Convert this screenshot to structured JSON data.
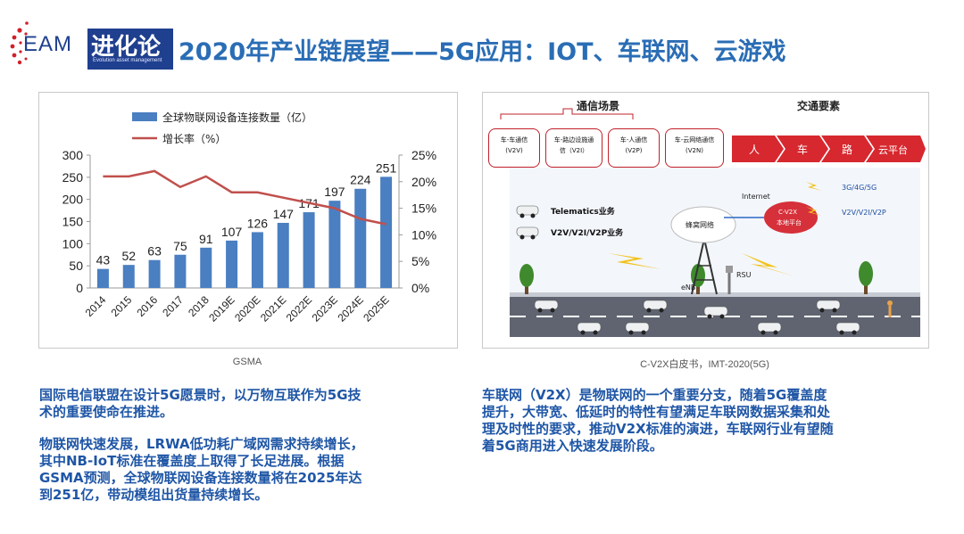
{
  "logo": {
    "letters": "EAM",
    "cn": "进化论",
    "sub": "Evolution asset management"
  },
  "title": "2020年产业链展望——5G应用：IOT、车联网、云游戏",
  "left_caption": "GSMA",
  "right_caption": "C-V2X白皮书，IMT-2020(5G)",
  "chart_data": {
    "type": "bar",
    "categories": [
      "2014",
      "2015",
      "2016",
      "2017",
      "2018",
      "2019E",
      "2020E",
      "2021E",
      "2022E",
      "2023E",
      "2024E",
      "2025E"
    ],
    "series": [
      {
        "name": "全球物联网设备连接数量（亿）",
        "type": "bar",
        "axis": "left",
        "values": [
          43,
          52,
          63,
          75,
          91,
          107,
          126,
          147,
          171,
          197,
          224,
          251
        ]
      },
      {
        "name": "增长率（%）",
        "type": "line",
        "axis": "right",
        "values": [
          21,
          21,
          22,
          19,
          21,
          18,
          18,
          17,
          16,
          15,
          13,
          12
        ]
      }
    ],
    "y_left": {
      "ticks": [
        "0",
        "50",
        "100",
        "150",
        "200",
        "250",
        "300"
      ],
      "range": [
        0,
        300
      ]
    },
    "y_right": {
      "ticks": [
        "0%",
        "5%",
        "10%",
        "15%",
        "20%",
        "25%"
      ],
      "range": [
        0,
        25
      ]
    },
    "colors": {
      "bar": "#4a7fc1",
      "line": "#c0504d"
    }
  },
  "v2x": {
    "comm_header": "通信场景",
    "traffic_header": "交通要素",
    "boxes": [
      {
        "line1": "车-车通信",
        "line2": "(V2V)"
      },
      {
        "line1": "车-路边设施通",
        "line2": "信（V2I）"
      },
      {
        "line1": "车-人通信",
        "line2": "(V2P)"
      },
      {
        "line1": "车-云网络通信",
        "line2": "(V2N)"
      }
    ],
    "elements": [
      "人",
      "车",
      "路",
      "云平台"
    ],
    "legend1": "Telematics业务",
    "legend2": "V2V/V2I/V2P业务",
    "internet": "Internet",
    "cloud_label1": "C-V2X",
    "cloud_label2": "本地平台",
    "net_label": "3G/4G/5G",
    "v2_label": "V2V/V2I/V2P",
    "cell": "蜂窝网络",
    "enb": "eNB",
    "rsu": "RSU"
  },
  "paragraphs": {
    "p1": [
      "国际电信联盟在设计5G愿景时，以万物互联作为5G技",
      "术的重要使命在推进。"
    ],
    "p2": [
      "物联网快速发展，LRWA低功耗广域网需求持续增长，",
      "其中NB-IoT标准在覆盖度上取得了长足进展。根据",
      "GSMA预测，全球物联网设备连接数量将在2025年达",
      "到251亿，带动模组出货量持续增长。"
    ],
    "p3": [
      "车联网（V2X）是物联网的一个重要分支，随着5G覆盖度",
      "提升，大带宽、低延时的特性有望满足车联网数据采集和处",
      "理及时性的要求，推动V2X标准的演进，车联网行业有望随",
      "着5G商用进入快速发展阶段。"
    ]
  }
}
